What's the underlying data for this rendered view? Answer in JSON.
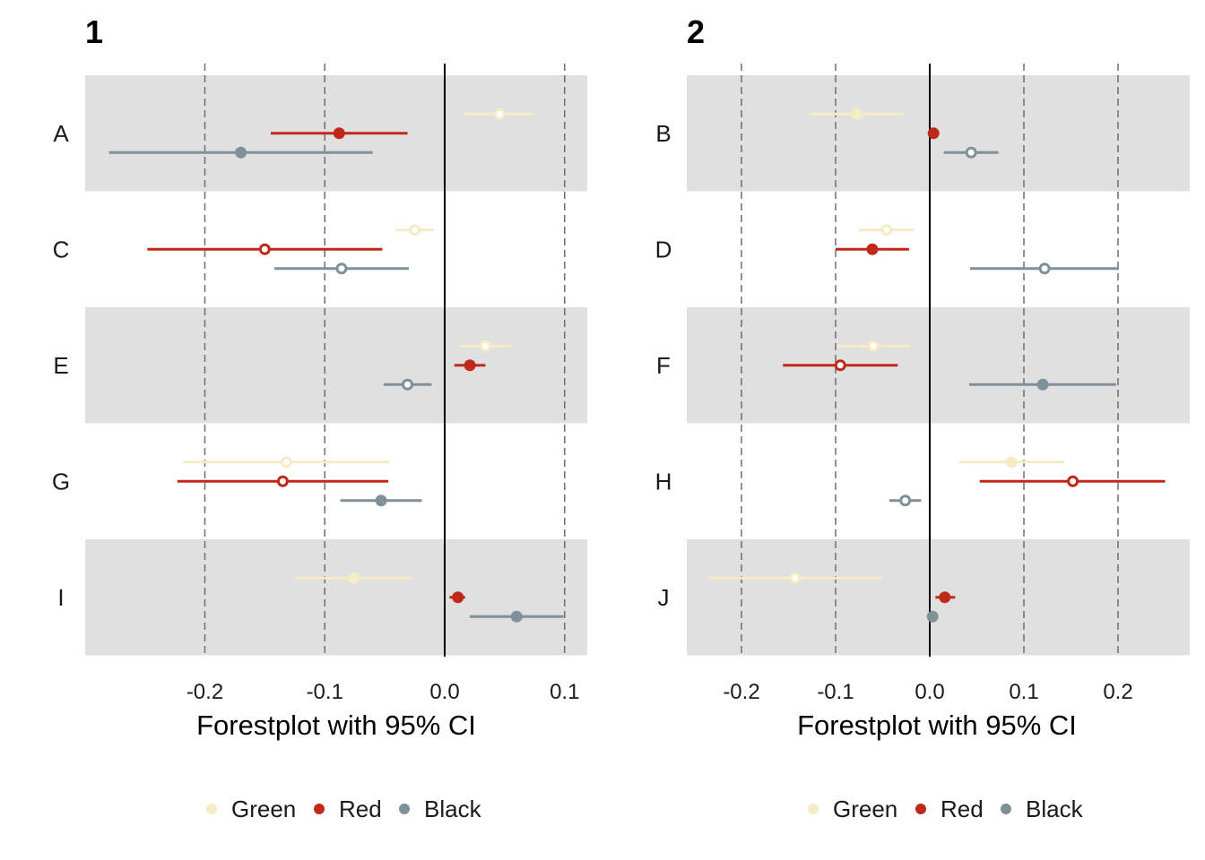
{
  "chart_data": [
    {
      "type": "forestplot",
      "title": "1",
      "xlabel": "Forestplot with 95% CI",
      "xlim": [
        -0.2,
        0.12
      ],
      "xticks": [
        -0.2,
        -0.1,
        0.0,
        0.1
      ],
      "xtick_labels": [
        "-0.2",
        "-0.1",
        "0.0",
        "0.1"
      ],
      "reference_line": 0.0,
      "dashed_gridlines": [
        -0.2,
        -0.1,
        0.1
      ],
      "categories": [
        "A",
        "C",
        "E",
        "G",
        "I"
      ],
      "shaded_rows": [
        "A",
        "E",
        "I"
      ],
      "legend": [
        "Green",
        "Red",
        "Black"
      ],
      "legend_position": "bottom",
      "series": [
        {
          "name": "Green",
          "color": "#F5EBC7",
          "points": [
            {
              "category": "A",
              "estimate": 0.046,
              "lower": 0.016,
              "upper": 0.074,
              "filled": false
            },
            {
              "category": "C",
              "estimate": -0.025,
              "lower": -0.041,
              "upper": -0.009,
              "filled": false
            },
            {
              "category": "E",
              "estimate": 0.034,
              "lower": 0.012,
              "upper": 0.055,
              "filled": false
            },
            {
              "category": "G",
              "estimate": -0.132,
              "lower": -0.218,
              "upper": -0.046,
              "filled": false
            },
            {
              "category": "I",
              "estimate": -0.076,
              "lower": -0.125,
              "upper": -0.027,
              "filled": true
            }
          ]
        },
        {
          "name": "Red",
          "color": "#C0281A",
          "points": [
            {
              "category": "A",
              "estimate": -0.088,
              "lower": -0.145,
              "upper": -0.031,
              "filled": true
            },
            {
              "category": "C",
              "estimate": -0.15,
              "lower": -0.248,
              "upper": -0.052,
              "filled": false
            },
            {
              "category": "E",
              "estimate": 0.021,
              "lower": 0.008,
              "upper": 0.034,
              "filled": true
            },
            {
              "category": "G",
              "estimate": -0.135,
              "lower": -0.223,
              "upper": -0.047,
              "filled": false
            },
            {
              "category": "I",
              "estimate": 0.011,
              "lower": 0.004,
              "upper": 0.017,
              "filled": true
            }
          ]
        },
        {
          "name": "Black",
          "color": "#7F9198",
          "points": [
            {
              "category": "A",
              "estimate": -0.17,
              "lower": -0.28,
              "upper": -0.06,
              "filled": true
            },
            {
              "category": "C",
              "estimate": -0.086,
              "lower": -0.142,
              "upper": -0.03,
              "filled": false
            },
            {
              "category": "E",
              "estimate": -0.031,
              "lower": -0.051,
              "upper": -0.011,
              "filled": false
            },
            {
              "category": "G",
              "estimate": -0.053,
              "lower": -0.087,
              "upper": -0.019,
              "filled": true
            },
            {
              "category": "I",
              "estimate": 0.06,
              "lower": 0.021,
              "upper": 0.099,
              "filled": true
            }
          ]
        }
      ]
    },
    {
      "type": "forestplot",
      "title": "2",
      "xlabel": "Forestplot with 95% CI",
      "xlim": [
        -0.2,
        0.2
      ],
      "xticks": [
        -0.2,
        -0.1,
        0.0,
        0.1,
        0.2
      ],
      "xtick_labels": [
        "-0.2",
        "-0.1",
        "0.0",
        "0.1",
        "0.2"
      ],
      "reference_line": 0.0,
      "dashed_gridlines": [
        -0.2,
        -0.1,
        0.1,
        0.2
      ],
      "categories": [
        "B",
        "D",
        "F",
        "H",
        "J"
      ],
      "shaded_rows": [
        "B",
        "F",
        "J"
      ],
      "legend": [
        "Green",
        "Red",
        "Black"
      ],
      "legend_position": "bottom",
      "series": [
        {
          "name": "Green",
          "color": "#F5EBC7",
          "points": [
            {
              "category": "B",
              "estimate": -0.078,
              "lower": -0.128,
              "upper": -0.028,
              "filled": true
            },
            {
              "category": "D",
              "estimate": -0.046,
              "lower": -0.075,
              "upper": -0.017,
              "filled": false
            },
            {
              "category": "F",
              "estimate": -0.06,
              "lower": -0.099,
              "upper": -0.021,
              "filled": false
            },
            {
              "category": "H",
              "estimate": 0.087,
              "lower": 0.031,
              "upper": 0.143,
              "filled": true
            },
            {
              "category": "J",
              "estimate": -0.143,
              "lower": -0.235,
              "upper": -0.05,
              "filled": false
            }
          ]
        },
        {
          "name": "Red",
          "color": "#C0281A",
          "points": [
            {
              "category": "B",
              "estimate": 0.004,
              "lower": 0.004,
              "upper": 0.004,
              "filled": true
            },
            {
              "category": "D",
              "estimate": -0.061,
              "lower": -0.1,
              "upper": -0.022,
              "filled": true
            },
            {
              "category": "F",
              "estimate": -0.095,
              "lower": -0.156,
              "upper": -0.034,
              "filled": false
            },
            {
              "category": "H",
              "estimate": 0.152,
              "lower": 0.053,
              "upper": 0.25,
              "filled": false
            },
            {
              "category": "J",
              "estimate": 0.016,
              "lower": 0.006,
              "upper": 0.027,
              "filled": true
            }
          ]
        },
        {
          "name": "Black",
          "color": "#7F9198",
          "points": [
            {
              "category": "B",
              "estimate": 0.044,
              "lower": 0.015,
              "upper": 0.073,
              "filled": false
            },
            {
              "category": "D",
              "estimate": 0.122,
              "lower": 0.043,
              "upper": 0.201,
              "filled": false
            },
            {
              "category": "F",
              "estimate": 0.12,
              "lower": 0.042,
              "upper": 0.198,
              "filled": true
            },
            {
              "category": "H",
              "estimate": -0.026,
              "lower": -0.043,
              "upper": -0.009,
              "filled": false
            },
            {
              "category": "J",
              "estimate": 0.003,
              "lower": 0.003,
              "upper": 0.003,
              "filled": true
            }
          ]
        }
      ]
    }
  ]
}
